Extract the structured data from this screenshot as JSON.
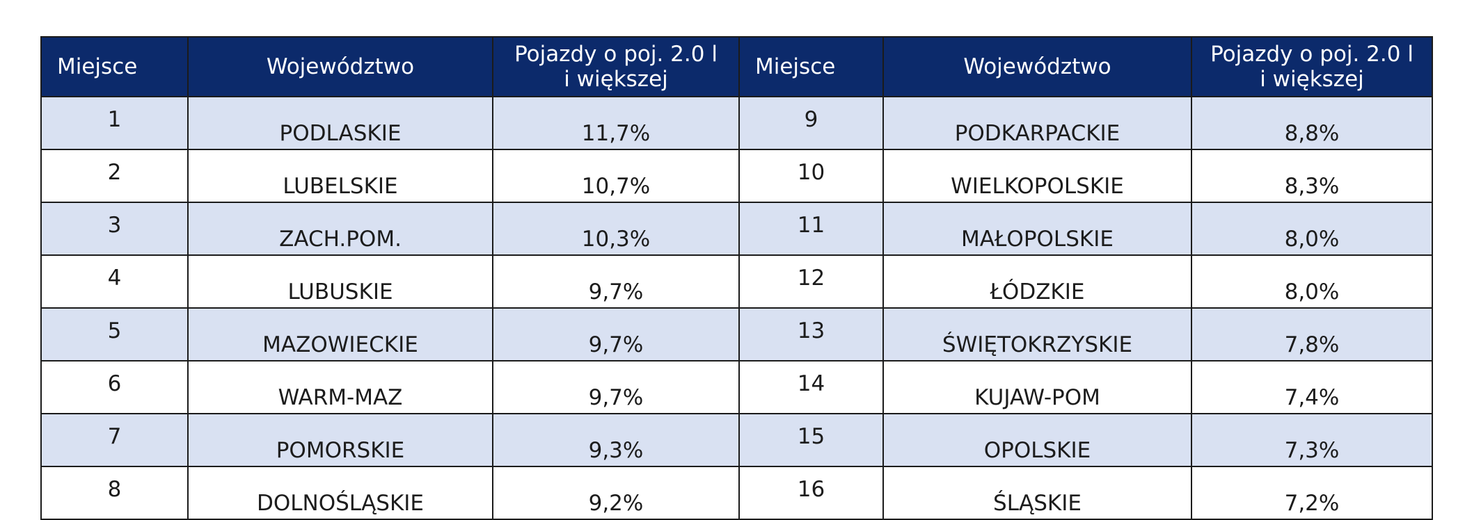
{
  "chart_data": {
    "type": "table",
    "columns": [
      "Miejsce",
      "Województwo",
      "Pojazdy o poj. 2.0 l i większej",
      "Miejsce",
      "Województwo",
      "Pojazdy o poj. 2.0 l i większej"
    ],
    "rows": [
      {
        "rank_a": "1",
        "region_a": "PODLASKIE",
        "share_a": "11,7%",
        "rank_b": "9",
        "region_b": "PODKARPACKIE",
        "share_b": "8,8%"
      },
      {
        "rank_a": "2",
        "region_a": "LUBELSKIE",
        "share_a": "10,7%",
        "rank_b": "10",
        "region_b": "WIELKOPOLSKIE",
        "share_b": "8,3%"
      },
      {
        "rank_a": "3",
        "region_a": "ZACH.POM.",
        "share_a": "10,3%",
        "rank_b": "11",
        "region_b": "MAŁOPOLSKIE",
        "share_b": "8,0%"
      },
      {
        "rank_a": "4",
        "region_a": "LUBUSKIE",
        "share_a": "9,7%",
        "rank_b": "12",
        "region_b": "ŁÓDZKIE",
        "share_b": "8,0%"
      },
      {
        "rank_a": "5",
        "region_a": "MAZOWIECKIE",
        "share_a": "9,7%",
        "rank_b": "13",
        "region_b": "ŚWIĘTOKRZYSKIE",
        "share_b": "7,8%"
      },
      {
        "rank_a": "6",
        "region_a": "WARM-MAZ",
        "share_a": "9,7%",
        "rank_b": "14",
        "region_b": "KUJAW-POM",
        "share_b": "7,4%"
      },
      {
        "rank_a": "7",
        "region_a": "POMORSKIE",
        "share_a": "9,3%",
        "rank_b": "15",
        "region_b": "OPOLSKIE",
        "share_b": "7,3%"
      },
      {
        "rank_a": "8",
        "region_a": "DOLNOŚLĄSKIE",
        "share_a": "9,2%",
        "rank_b": "16",
        "region_b": "ŚLĄSKIE",
        "share_b": "7,2%"
      }
    ]
  },
  "header": {
    "rank": "Miejsce",
    "region": "Województwo",
    "share_line1": "Pojazdy o poj. 2.0 l",
    "share_line2": "i większej"
  },
  "colors": {
    "header_bg": "#0c2a6b",
    "band_bg": "#d9e1f2",
    "border": "#1b1b1b"
  }
}
